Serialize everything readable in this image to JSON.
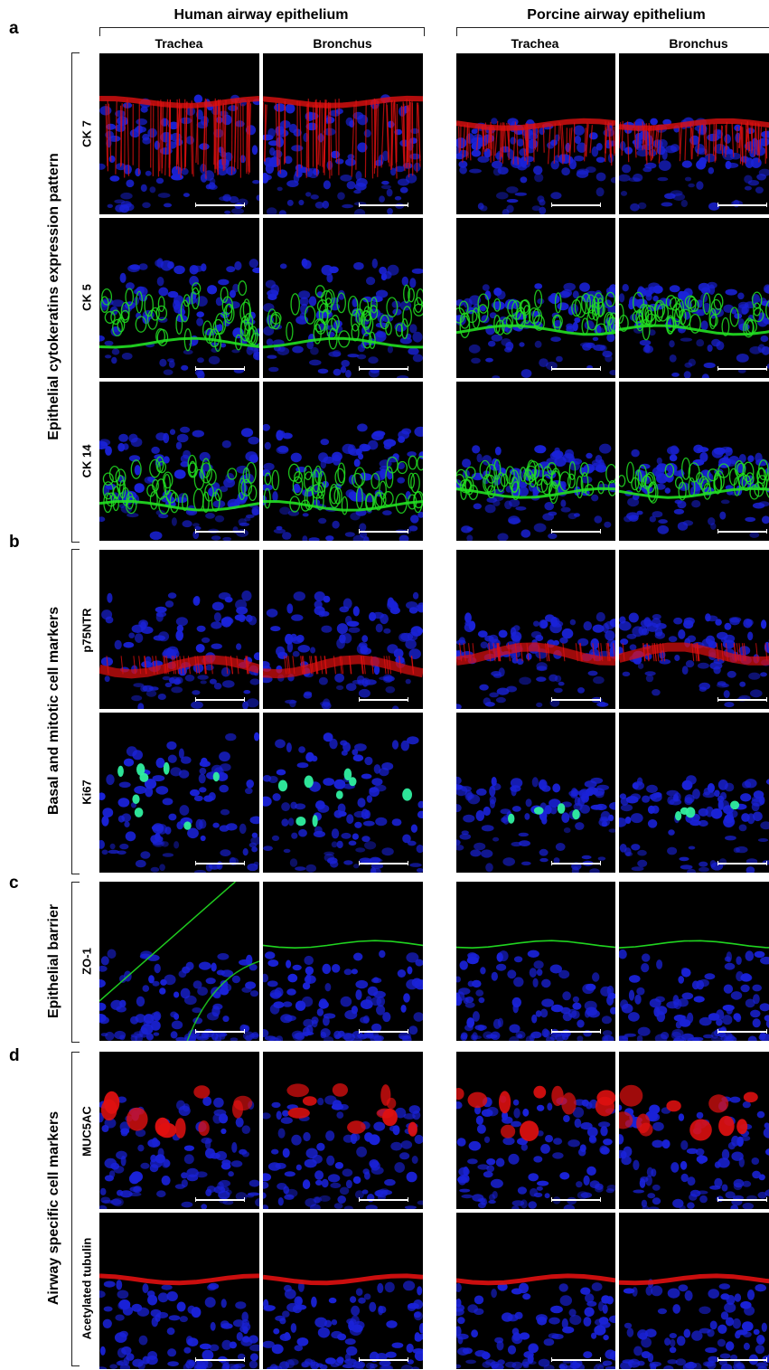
{
  "groups": {
    "human": "Human airway epithelium",
    "porcine": "Porcine airway epithelium"
  },
  "columns": [
    "Trachea",
    "Bronchus",
    "Trachea",
    "Bronchus"
  ],
  "panels": [
    {
      "letter": "a",
      "label": "Epithelial cytokeratins expression pattern",
      "rows": [
        "CK 7",
        "CK 5",
        "CK 14"
      ]
    },
    {
      "letter": "b",
      "label": "Basal and mitotic cell markers",
      "rows": [
        "p75NTR",
        "Ki67"
      ]
    },
    {
      "letter": "c",
      "label": "Epithelial barrier",
      "rows": [
        "ZO-1"
      ]
    },
    {
      "letter": "d",
      "label": "Airway specific cell markers",
      "rows": [
        "MUC5AC",
        "Acetylated tubulin"
      ]
    }
  ],
  "colors": {
    "nuclei": "#1a22d8",
    "red_stain": "#e01010",
    "green_stain": "#22e022",
    "background": "#000000"
  }
}
